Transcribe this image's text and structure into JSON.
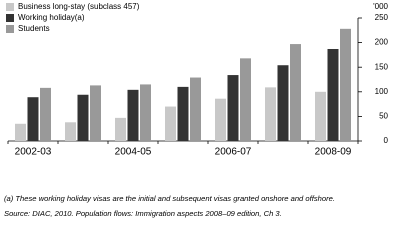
{
  "chart_data": {
    "type": "bar",
    "y_label": "'000",
    "categories": [
      "2002-03",
      null,
      "2004-05",
      null,
      "2006-07",
      null,
      "2008-09"
    ],
    "series": [
      {
        "name": "Business long-stay (subclass 457)",
        "color": "#c8c8c8",
        "values": [
          35,
          38,
          47,
          70,
          86,
          109,
          100
        ]
      },
      {
        "name": "Working holiday(a)",
        "color": "#333333",
        "values": [
          89,
          94,
          104,
          110,
          134,
          154,
          187
        ]
      },
      {
        "name": "Students",
        "color": "#999999",
        "values": [
          108,
          113,
          115,
          129,
          168,
          197,
          228
        ]
      }
    ],
    "ylim": [
      0,
      250
    ],
    "yticks": [
      0,
      50,
      100,
      150,
      200,
      250
    ],
    "footnote": "(a) These working holiday visas are the initial and subsequent visas granted onshore and offshore.",
    "source": "Source: DIAC, 2010. Population flows: Immigration aspects 2008–09 edition, Ch 3."
  }
}
